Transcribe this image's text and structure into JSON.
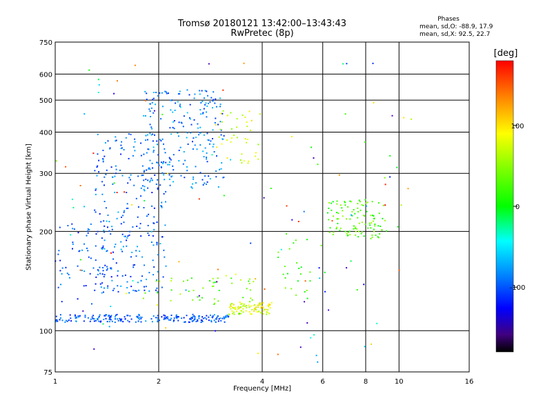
{
  "chart_data": {
    "type": "scatter",
    "title": "Tromsø 20180121 13:42:00–13:43:43",
    "subtitle": "RwPretec (8p)",
    "xlabel": "Frequency [MHz]",
    "ylabel": "Stationary phase Virtual Height [km]",
    "x_scale": "log",
    "y_scale": "log",
    "xlim": [
      1,
      16
    ],
    "ylim": [
      75,
      750
    ],
    "x_ticks": [
      1,
      2,
      4,
      6,
      8,
      10,
      16
    ],
    "y_ticks": [
      75,
      100,
      200,
      300,
      400,
      500,
      600,
      750
    ],
    "grid": true,
    "colorbar": {
      "label": "[deg]",
      "range": [
        -180,
        180
      ],
      "ticks": [
        100,
        0,
        -100
      ]
    },
    "phase_stats": {
      "title": "Phases",
      "o_mode": "mean, sd,O: -88.9, 17.9",
      "x_mode": "mean, sd,X: 92.5, 22.7"
    },
    "traces": [
      {
        "name": "",
        "x_range": [
          1.0,
          3.2
        ],
        "y_range": [
          106,
          112
        ],
        "phase": -100,
        "count": 220
      },
      {
        "name": "",
        "x_range": [
          3.2,
          4.3
        ],
        "y_range": [
          112,
          122
        ],
        "phase": 95,
        "count": 90
      },
      {
        "name": "",
        "x_range": [
          1.0,
          1.5
        ],
        "y_range": [
          120,
          215
        ],
        "phase": -100,
        "count": 70
      },
      {
        "name": "",
        "x_range": [
          1.3,
          2.1
        ],
        "y_range": [
          130,
          400
        ],
        "phase": -95,
        "count": 260
      },
      {
        "name": "",
        "x_range": [
          1.8,
          3.1
        ],
        "y_range": [
          270,
          540
        ],
        "phase": -90,
        "count": 220
      },
      {
        "name": "",
        "x_range": [
          2.9,
          4.0
        ],
        "y_range": [
          320,
          470
        ],
        "phase": 90,
        "count": 40
      },
      {
        "name": "",
        "x_range": [
          1.8,
          3.8
        ],
        "y_range": [
          120,
          145
        ],
        "phase": 60,
        "count": 45
      },
      {
        "name": "",
        "x_range": [
          6.2,
          9.2
        ],
        "y_range": [
          190,
          250
        ],
        "phase": 50,
        "count": 110
      },
      {
        "name": "",
        "x_range": [
          4.4,
          6.2
        ],
        "y_range": [
          125,
          200
        ],
        "phase": 40,
        "count": 25
      },
      {
        "name": "",
        "x_range": [
          1.0,
          11.0
        ],
        "y_range": [
          80,
          650
        ],
        "phase": 0,
        "count": 120
      }
    ]
  }
}
